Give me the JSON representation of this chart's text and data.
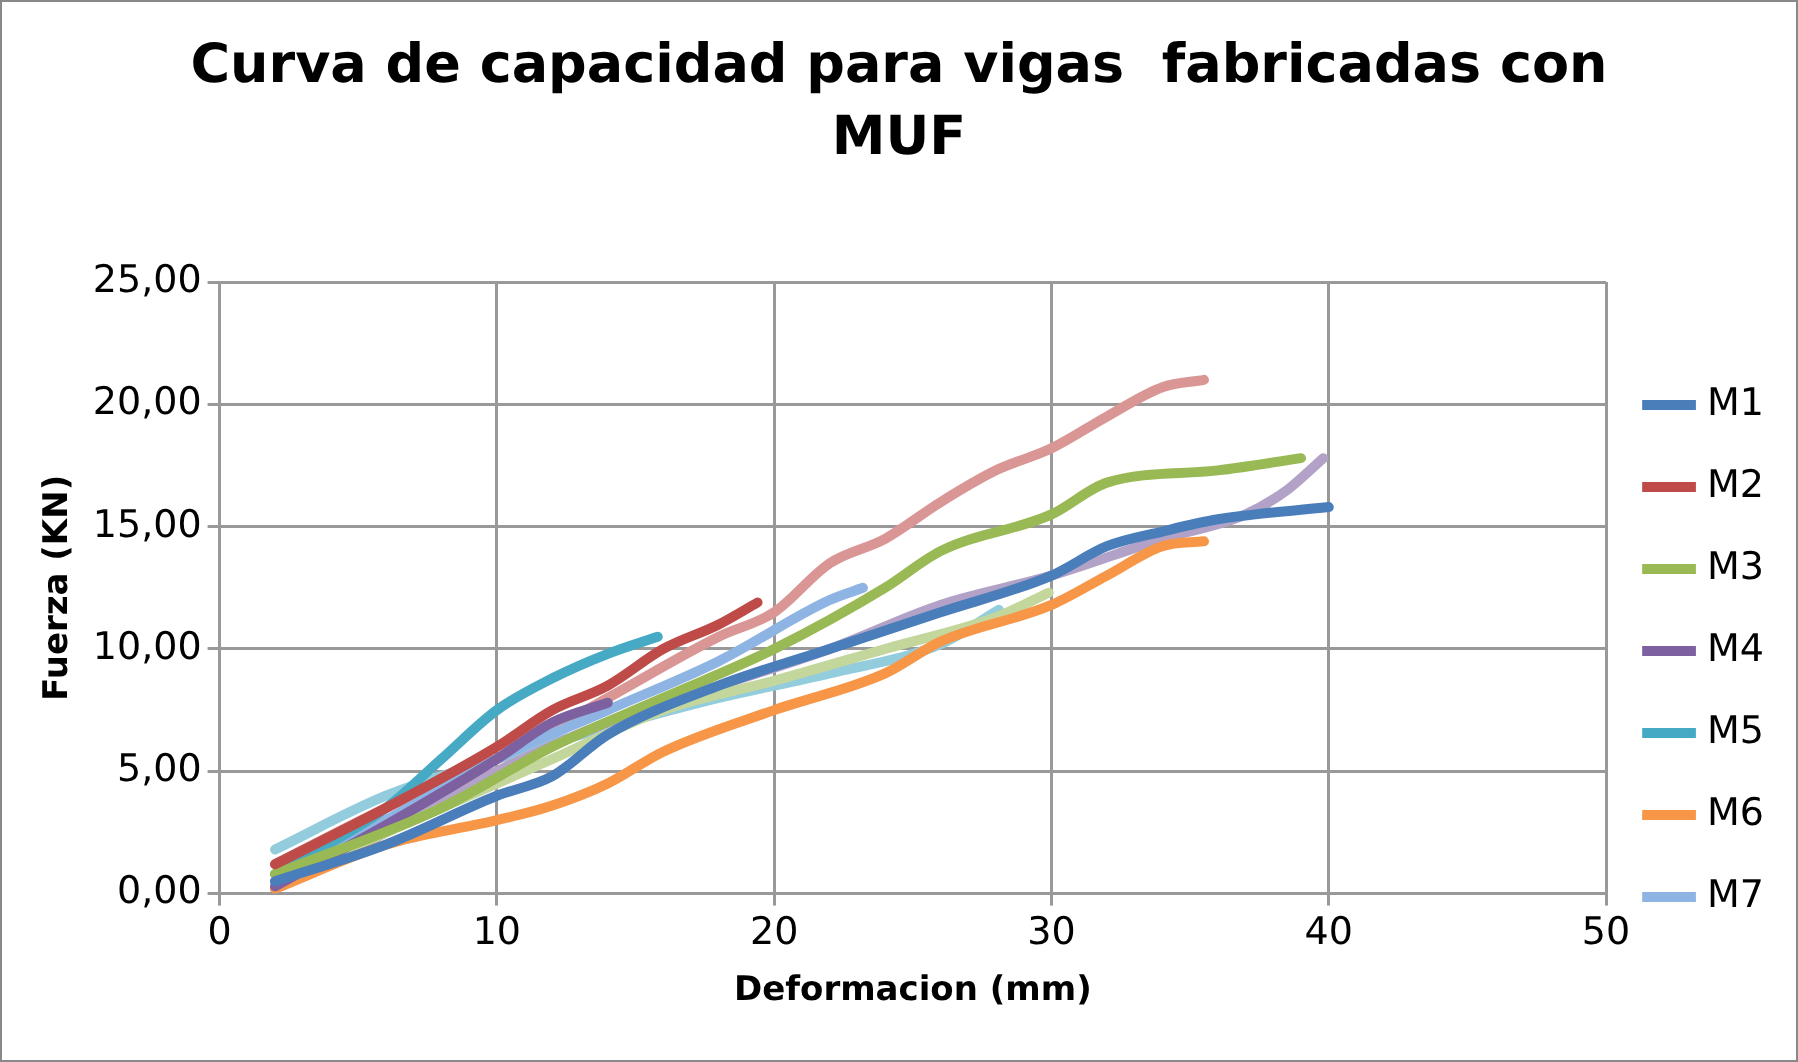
{
  "chart_data": {
    "type": "line",
    "title": "Curva de capacidad para vigas  fabricadas con MUF",
    "xlabel": "Deformacion (mm)",
    "ylabel": "Fuerza (KN)",
    "xlim": [
      0,
      50
    ],
    "xticks": [
      0,
      10,
      20,
      30,
      40,
      50
    ],
    "ylim": [
      0,
      25
    ],
    "yticks": [
      {
        "value": 0,
        "label": "0,00"
      },
      {
        "value": 5,
        "label": "5,00"
      },
      {
        "value": 10,
        "label": "10,00"
      },
      {
        "value": 15,
        "label": "15,00"
      },
      {
        "value": 20,
        "label": "20,00"
      },
      {
        "value": 25,
        "label": "25,00"
      }
    ],
    "grid": true,
    "legend": "right",
    "marker": "none",
    "line_style": "solid",
    "series": [
      {
        "name": "M1",
        "color": "#4a7ebb",
        "x": [
          2,
          6,
          10,
          12,
          14,
          18,
          22,
          26,
          30,
          32,
          34,
          36,
          40
        ],
        "values": [
          0.5,
          2,
          4,
          4.8,
          6.5,
          8.5,
          10,
          11.5,
          13,
          14.2,
          14.8,
          15.3,
          15.8
        ]
      },
      {
        "name": "M2",
        "color": "#be4b48",
        "x": [
          2,
          6,
          10,
          12,
          14,
          16,
          18,
          19.4
        ],
        "values": [
          1.2,
          3.5,
          6,
          7.5,
          8.5,
          10,
          11,
          11.9
        ]
      },
      {
        "name": "M3",
        "color": "#98b954",
        "x": [
          2,
          8,
          12,
          16,
          20,
          24,
          26,
          30,
          32,
          36,
          39
        ],
        "values": [
          0.8,
          3.5,
          6,
          8,
          10,
          12.5,
          14,
          15.5,
          16.8,
          17.3,
          17.8
        ]
      },
      {
        "name": "M4",
        "color": "#7d60a0",
        "x": [
          2,
          6,
          10,
          12,
          14
        ],
        "values": [
          0.3,
          2.8,
          5.5,
          7,
          7.8
        ]
      },
      {
        "name": "M5",
        "color": "#46aac5",
        "x": [
          2,
          6,
          8,
          10,
          12,
          14,
          15.8
        ],
        "values": [
          0.8,
          3.5,
          5.5,
          7.5,
          8.8,
          9.8,
          10.5
        ]
      },
      {
        "name": "M6",
        "color": "#f79646",
        "x": [
          2,
          6,
          10,
          12,
          14,
          16,
          20,
          24,
          26,
          30,
          32,
          34,
          35.5
        ],
        "values": [
          0.2,
          2,
          3,
          3.6,
          4.5,
          5.8,
          7.5,
          9,
          10.3,
          11.8,
          13,
          14.2,
          14.4
        ]
      },
      {
        "name": "M7",
        "color": "#8eb4e3",
        "x": [
          2,
          6,
          10,
          14,
          18,
          22,
          23.2
        ],
        "values": [
          0.5,
          3,
          5.5,
          7.5,
          9.5,
          12,
          12.5
        ]
      },
      {
        "color": "#d99694",
        "x": [
          2,
          6,
          10,
          14,
          18,
          20,
          22,
          24,
          26,
          28,
          30,
          32,
          34,
          35.5
        ],
        "values": [
          1.2,
          3.5,
          5.5,
          8,
          10.5,
          11.5,
          13.5,
          14.5,
          16,
          17.3,
          18.2,
          19.5,
          20.7,
          21
        ]
      },
      {
        "color": "#c3d69b",
        "x": [
          2,
          8,
          12,
          16,
          20,
          24,
          28,
          29.9
        ],
        "values": [
          0.5,
          3.5,
          5.5,
          7.5,
          8.7,
          10,
          11.3,
          12.3
        ]
      },
      {
        "color": "#b3a2c7",
        "x": [
          2,
          6,
          10,
          14,
          18,
          22,
          26,
          30,
          34,
          37,
          38.5,
          39.8
        ],
        "values": [
          0.2,
          2.5,
          5,
          7,
          8.5,
          10,
          11.8,
          13,
          14.5,
          15.5,
          16.5,
          17.8
        ]
      },
      {
        "color": "#93cddd",
        "x": [
          2,
          6,
          10,
          14,
          18,
          22,
          26,
          28.1
        ],
        "values": [
          1.8,
          4,
          5.5,
          6.8,
          8,
          9,
          10.2,
          11.6
        ]
      }
    ]
  }
}
